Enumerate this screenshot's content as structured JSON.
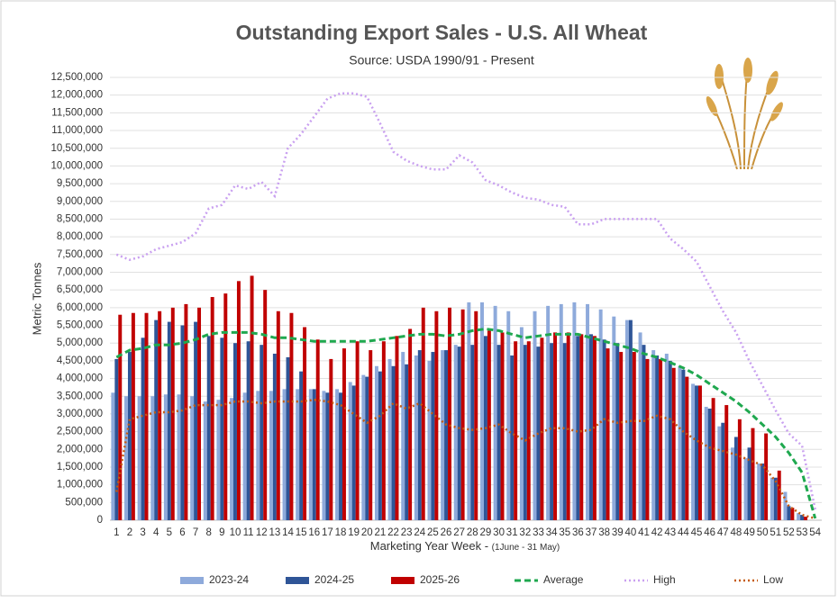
{
  "chart_data": {
    "type": "combo",
    "title": "Outstanding Export Sales - U.S. All Wheat",
    "subtitle": "Source: USDA 1990/91 - Present",
    "ylabel": "Metric Tonnes",
    "xlabel": "Marketing Year Week - ",
    "xlabel_note": "(1June - 31 May)",
    "legend": "bottom",
    "grid": true,
    "categories": [
      "1",
      "2",
      "3",
      "4",
      "5",
      "6",
      "7",
      "8",
      "9",
      "10",
      "11",
      "12",
      "13",
      "14",
      "15",
      "16",
      "17",
      "18",
      "19",
      "20",
      "21",
      "22",
      "23",
      "24",
      "25",
      "26",
      "27",
      "28",
      "29",
      "30",
      "31",
      "32",
      "33",
      "34",
      "35",
      "36",
      "37",
      "38",
      "39",
      "40",
      "41",
      "42",
      "43",
      "44",
      "45",
      "46",
      "47",
      "48",
      "49",
      "50",
      "51",
      "52",
      "53",
      "54"
    ],
    "ylim": [
      0,
      12500000
    ],
    "yticks": [
      {
        "value": 0,
        "label": "0"
      },
      {
        "value": 500000,
        "label": "500,000"
      },
      {
        "value": 1000000,
        "label": "1,000,000"
      },
      {
        "value": 1500000,
        "label": "1,500,000"
      },
      {
        "value": 2000000,
        "label": "2,000,000"
      },
      {
        "value": 2500000,
        "label": "2,500,000"
      },
      {
        "value": 3000000,
        "label": "3,000,000"
      },
      {
        "value": 3500000,
        "label": "3,500,000"
      },
      {
        "value": 4000000,
        "label": "4,000,000"
      },
      {
        "value": 4500000,
        "label": "4,500,000"
      },
      {
        "value": 5000000,
        "label": "5,000,000"
      },
      {
        "value": 5500000,
        "label": "5,500,000"
      },
      {
        "value": 6000000,
        "label": "6,000,000"
      },
      {
        "value": 6500000,
        "label": "6,500,000"
      },
      {
        "value": 7000000,
        "label": "7,000,000"
      },
      {
        "value": 7500000,
        "label": "7,500,000"
      },
      {
        "value": 8000000,
        "label": "8,000,000"
      },
      {
        "value": 8500000,
        "label": "8,500,000"
      },
      {
        "value": 9000000,
        "label": "9,000,000"
      },
      {
        "value": 9500000,
        "label": "9,500,000"
      },
      {
        "value": 10000000,
        "label": "10,000,000"
      },
      {
        "value": 10500000,
        "label": "10,500,000"
      },
      {
        "value": 11000000,
        "label": "11,000,000"
      },
      {
        "value": 11500000,
        "label": "11,500,000"
      },
      {
        "value": 12000000,
        "label": "12,000,000"
      },
      {
        "value": 12500000,
        "label": "12,500,000"
      }
    ],
    "series": [
      {
        "name": "2023-24",
        "kind": "bar",
        "color": "#8eaadb",
        "values": [
          3600000,
          3500000,
          3500000,
          3500000,
          3550000,
          3550000,
          3500000,
          3350000,
          3400000,
          3450000,
          3600000,
          3650000,
          3650000,
          3700000,
          3700000,
          3700000,
          3650000,
          3700000,
          3900000,
          4100000,
          4350000,
          4550000,
          4750000,
          4650000,
          4500000,
          4800000,
          4950000,
          6150000,
          6150000,
          6050000,
          5900000,
          5450000,
          5900000,
          6050000,
          6100000,
          6150000,
          6100000,
          5950000,
          5750000,
          5650000,
          5300000,
          4800000,
          4700000,
          4350000,
          3850000,
          3200000,
          2650000,
          2050000,
          1750000,
          1600000,
          1200000,
          800000,
          200000,
          null
        ]
      },
      {
        "name": "2024-25",
        "kind": "bar",
        "color": "#2f5597",
        "values": [
          4550000,
          4750000,
          5150000,
          5650000,
          5600000,
          5500000,
          5600000,
          5200000,
          5150000,
          5000000,
          5050000,
          4950000,
          4700000,
          4600000,
          4200000,
          3700000,
          3600000,
          3600000,
          3800000,
          4050000,
          4200000,
          4350000,
          4400000,
          4800000,
          4750000,
          4800000,
          4900000,
          4950000,
          5200000,
          4950000,
          4650000,
          4950000,
          4900000,
          5000000,
          5000000,
          5200000,
          5250000,
          5100000,
          5000000,
          5650000,
          4950000,
          4650000,
          4500000,
          4250000,
          3800000,
          3150000,
          2750000,
          2350000,
          2050000,
          1600000,
          1200000,
          400000,
          150000,
          null
        ]
      },
      {
        "name": "2025-26",
        "kind": "bar",
        "color": "#c00000",
        "values": [
          5800000,
          5850000,
          5850000,
          5900000,
          6000000,
          6100000,
          6000000,
          6300000,
          6400000,
          6750000,
          6900000,
          6500000,
          5900000,
          5850000,
          5450000,
          5100000,
          4550000,
          4850000,
          5050000,
          4800000,
          5050000,
          5200000,
          5400000,
          6000000,
          5900000,
          6000000,
          5950000,
          5900000,
          5350000,
          5300000,
          5050000,
          5050000,
          5150000,
          5300000,
          5300000,
          5250000,
          5200000,
          4850000,
          4750000,
          4750000,
          4550000,
          4550000,
          4300000,
          4050000,
          3800000,
          3450000,
          3250000,
          2850000,
          2600000,
          2450000,
          1400000,
          350000,
          100000,
          null
        ]
      },
      {
        "name": "Average",
        "kind": "line",
        "dash": "7 4",
        "width": 3,
        "color": "#1fa84f",
        "values": [
          4600000,
          4800000,
          4850000,
          4950000,
          4950000,
          5000000,
          5100000,
          5250000,
          5300000,
          5300000,
          5300000,
          5250000,
          5150000,
          5150000,
          5100000,
          5050000,
          5050000,
          5050000,
          5050000,
          5050000,
          5100000,
          5150000,
          5200000,
          5250000,
          5250000,
          5200000,
          5250000,
          5350000,
          5400000,
          5350000,
          5250000,
          5150000,
          5200000,
          5250000,
          5250000,
          5250000,
          5150000,
          5050000,
          4950000,
          4850000,
          4700000,
          4600000,
          4450000,
          4300000,
          4100000,
          3850000,
          3600000,
          3350000,
          3050000,
          2700000,
          2350000,
          1900000,
          1350000,
          50000
        ]
      },
      {
        "name": "High",
        "kind": "line",
        "dash": "2 3",
        "width": 2.5,
        "color": "#c9a0f0",
        "values": [
          7500000,
          7350000,
          7450000,
          7650000,
          7750000,
          7850000,
          8100000,
          8800000,
          8900000,
          9450000,
          9350000,
          9550000,
          9150000,
          10500000,
          10900000,
          11400000,
          11900000,
          12050000,
          12050000,
          11950000,
          11200000,
          10400000,
          10150000,
          10000000,
          9900000,
          9900000,
          10300000,
          10100000,
          9600000,
          9450000,
          9250000,
          9100000,
          9050000,
          8900000,
          8850000,
          8350000,
          8350000,
          8500000,
          8500000,
          8500000,
          8500000,
          8500000,
          7950000,
          7650000,
          7300000,
          6600000,
          5900000,
          5300000,
          4500000,
          3800000,
          3100000,
          2450000,
          2100000,
          300000
        ]
      },
      {
        "name": "Low",
        "kind": "line",
        "dash": "2 3",
        "width": 2.5,
        "color": "#c55a11",
        "values": [
          800000,
          2850000,
          2950000,
          3050000,
          3050000,
          3100000,
          3250000,
          3250000,
          3250000,
          3350000,
          3350000,
          3300000,
          3350000,
          3350000,
          3350000,
          3400000,
          3350000,
          3250000,
          3000000,
          2750000,
          2950000,
          3300000,
          3150000,
          3300000,
          3000000,
          2700000,
          2600000,
          2550000,
          2600000,
          2700000,
          2450000,
          2250000,
          2450000,
          2600000,
          2600000,
          2500000,
          2550000,
          2850000,
          2750000,
          2800000,
          2800000,
          2950000,
          2850000,
          2500000,
          2250000,
          2050000,
          1950000,
          1850000,
          1700000,
          1550000,
          1100000,
          400000,
          150000,
          50000
        ]
      }
    ]
  }
}
